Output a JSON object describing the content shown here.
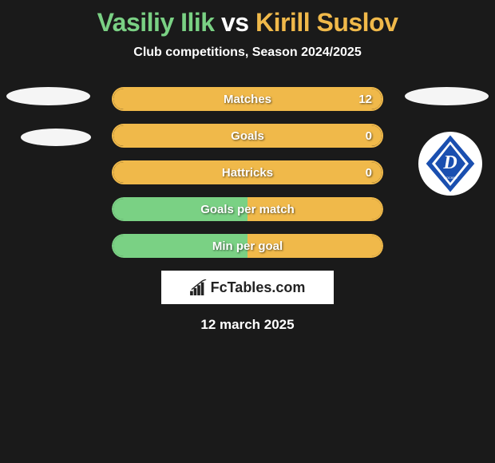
{
  "title": {
    "player1": "Vasiliy Ilik",
    "vs": "vs",
    "player2": "Kirill Suslov",
    "color1": "#7ad184",
    "color_vs": "#ffffff",
    "color2": "#f0b94a"
  },
  "subtitle": "Club competitions, Season 2024/2025",
  "colors": {
    "p1": "#7ad184",
    "p2": "#f0b94a",
    "background": "#1a1a1a",
    "text": "#ffffff"
  },
  "stats": [
    {
      "label": "Matches",
      "v1": "",
      "v2": "12",
      "pct1": 0,
      "pct2": 100
    },
    {
      "label": "Goals",
      "v1": "",
      "v2": "0",
      "pct1": 0,
      "pct2": 100
    },
    {
      "label": "Hattricks",
      "v1": "",
      "v2": "0",
      "pct1": 0,
      "pct2": 100
    },
    {
      "label": "Goals per match",
      "v1": "",
      "v2": "",
      "pct1": 50,
      "pct2": 50
    },
    {
      "label": "Min per goal",
      "v1": "",
      "v2": "",
      "pct1": 50,
      "pct2": 50
    }
  ],
  "watermark": "FcTables.com",
  "date": "12 march 2025",
  "club_logo": {
    "shape": "diamond",
    "primary": "#1a4fb0",
    "secondary": "#ffffff",
    "letter": "D"
  }
}
